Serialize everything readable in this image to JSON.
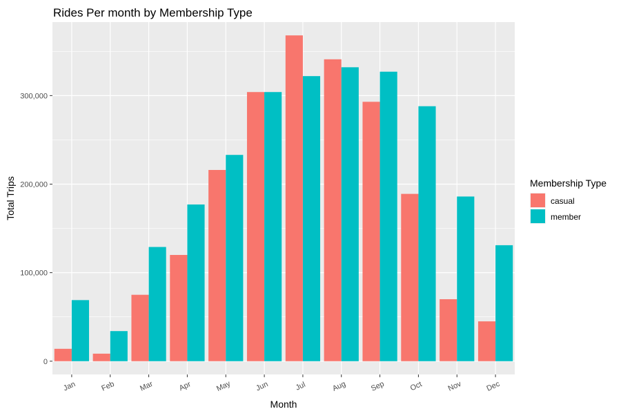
{
  "chart_data": {
    "type": "bar",
    "title": "Rides Per month by Membership Type",
    "xlabel": "Month",
    "ylabel": "Total Trips",
    "categories": [
      "Jan",
      "Feb",
      "Mar",
      "Apr",
      "May",
      "Jun",
      "Jul",
      "Aug",
      "Sep",
      "Oct",
      "Nov",
      "Dec"
    ],
    "series": [
      {
        "name": "casual",
        "color": "#F8766D",
        "values": [
          14000,
          8500,
          75000,
          120000,
          216000,
          304000,
          368000,
          341000,
          293000,
          189000,
          70000,
          45000
        ]
      },
      {
        "name": "member",
        "color": "#00BFC4",
        "values": [
          69000,
          34000,
          129000,
          177000,
          233000,
          304000,
          322000,
          332000,
          327000,
          288000,
          186000,
          131000
        ]
      }
    ],
    "yticks": [
      0,
      100000,
      200000,
      300000
    ],
    "ytick_labels": [
      "0",
      "100,000",
      "200,000",
      "300,000"
    ],
    "ylim": [
      -15000,
      383000
    ],
    "legend": {
      "title": "Membership Type",
      "placement": "right"
    },
    "grid": true,
    "panel_background": "#EBEBEB",
    "grid_color": "#FFFFFF"
  }
}
